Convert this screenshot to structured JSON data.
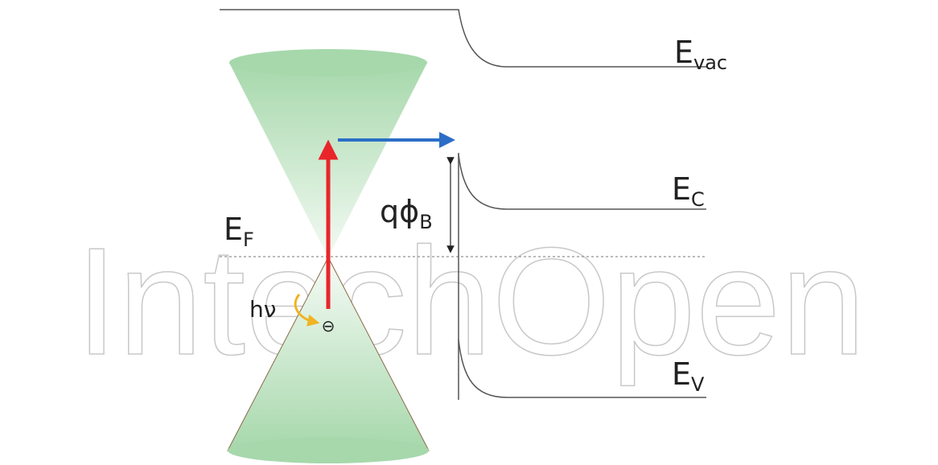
{
  "watermark": "IntechOpen",
  "labels": {
    "vacuum": {
      "main": "E",
      "sub": "vac"
    },
    "conduction": {
      "main": "E",
      "sub": "C"
    },
    "fermi": {
      "main": "E",
      "sub": "F"
    },
    "valence": {
      "main": "E",
      "sub": "V"
    },
    "barrier": {
      "main": "qϕ",
      "sub": "B"
    },
    "photon": "hν",
    "electron": "⊖"
  }
}
